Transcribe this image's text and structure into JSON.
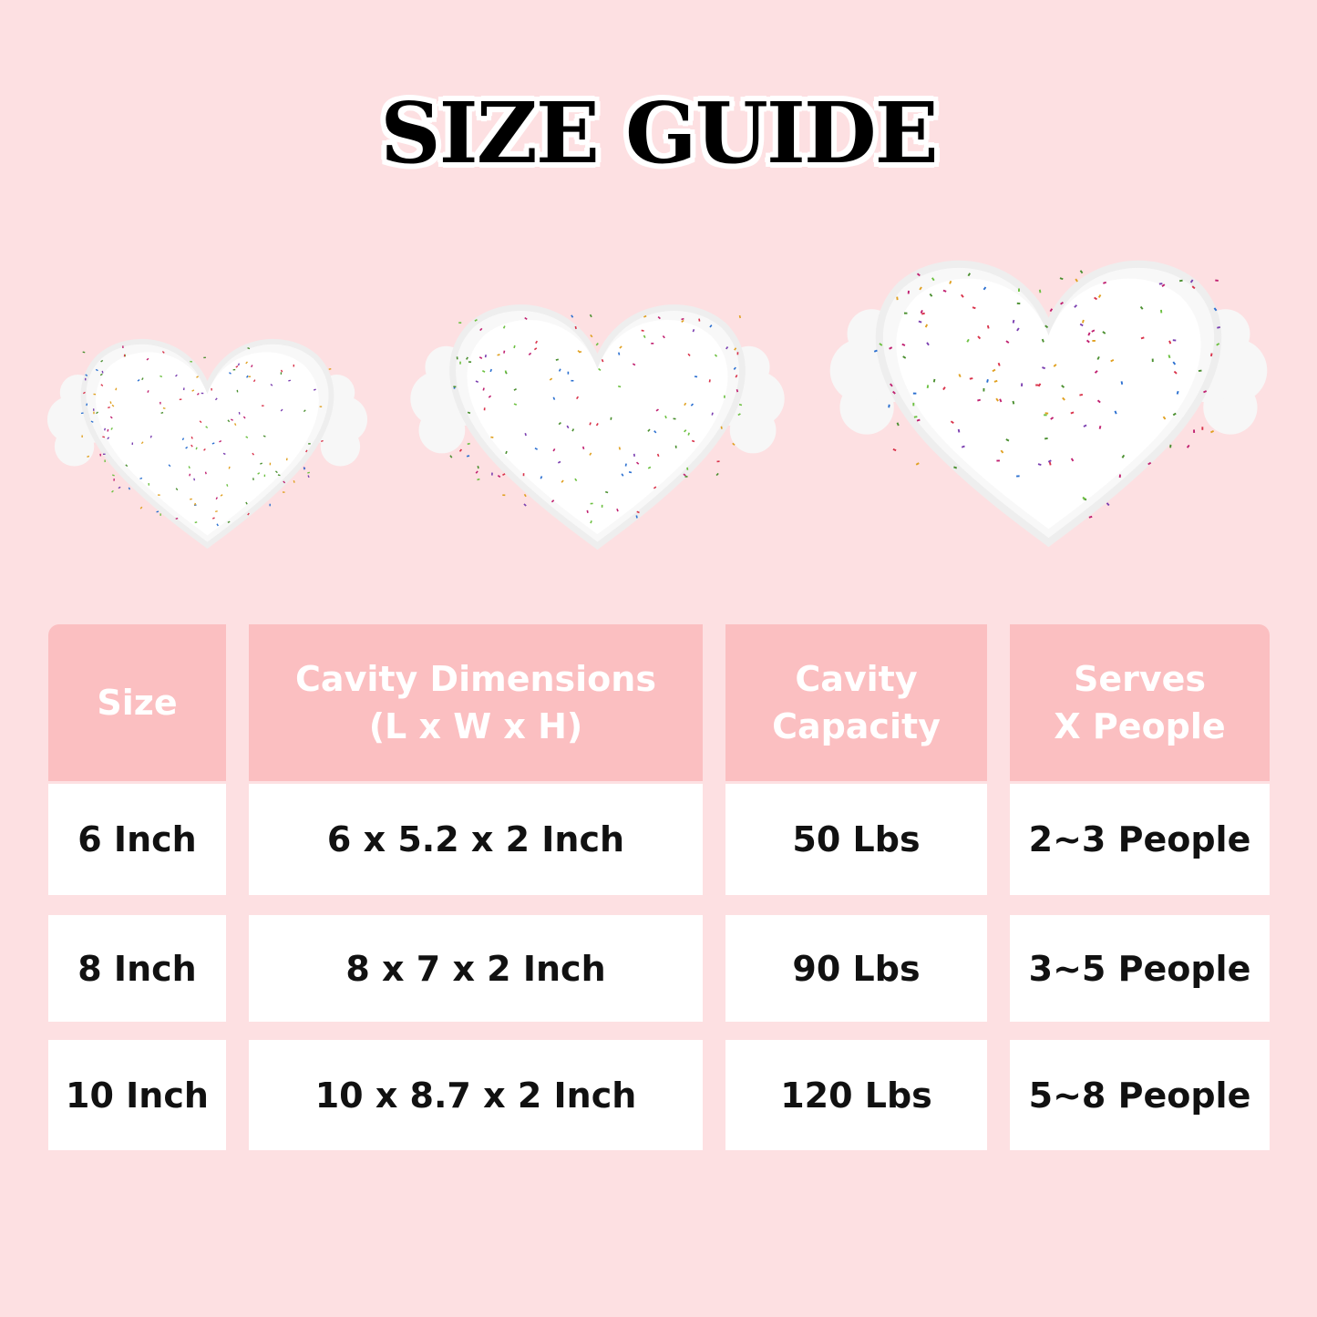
{
  "title": "SIZE GUIDE",
  "colors": {
    "background": "#fde0e2",
    "header": "#fbbfc1",
    "cell": "#ffffff"
  },
  "images": [
    "heart-cake-mold-6-inch",
    "heart-cake-mold-8-inch",
    "heart-cake-mold-10-inch"
  ],
  "table": {
    "headers": [
      "Size",
      "Cavity Dimensions\n(L x W x H)",
      "Cavity\nCapacity",
      "Serves\nX People"
    ],
    "rows": [
      [
        "6 Inch",
        "6 x 5.2 x 2 Inch",
        "50 Lbs",
        "2~3 People"
      ],
      [
        "8 Inch",
        "8 x 7 x 2 Inch",
        "90 Lbs",
        "3~5 People"
      ],
      [
        "10 Inch",
        "10 x 8.7 x 2 Inch",
        "120 Lbs",
        "5~8 People"
      ]
    ]
  }
}
